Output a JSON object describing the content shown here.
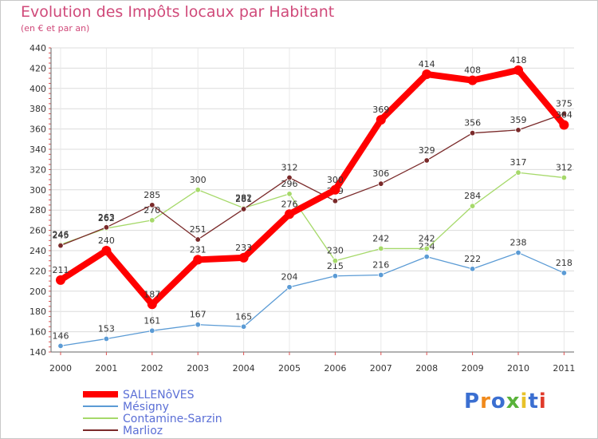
{
  "title": "Evolution des Impôts locaux par Habitant",
  "subtitle": "(en € et par an)",
  "logo": {
    "text": "Proxiti",
    "colors": [
      "#3b6fd1",
      "#f08a1c",
      "#3b6fd1",
      "#59b33a",
      "#e8c22a",
      "#3b6fd1",
      "#e03a2a"
    ]
  },
  "chart_data": {
    "type": "line",
    "x": [
      "2000",
      "2001",
      "2002",
      "2003",
      "2004",
      "2005",
      "2006",
      "2007",
      "2008",
      "2009",
      "2010",
      "2011"
    ],
    "ylim": [
      140,
      440
    ],
    "yticks": [
      140,
      160,
      180,
      200,
      220,
      240,
      260,
      280,
      300,
      320,
      340,
      360,
      380,
      400,
      420,
      440
    ],
    "grid": true,
    "legend_position": "bottom-left",
    "series": [
      {
        "name": "SALLENôVES",
        "color": "#ff0000",
        "values": [
          211,
          240,
          187,
          231,
          233,
          276,
          300,
          369,
          414,
          408,
          418,
          364
        ]
      },
      {
        "name": "Mésigny",
        "color": "#5b9bd5",
        "values": [
          146,
          153,
          161,
          167,
          165,
          204,
          215,
          216,
          234,
          222,
          238,
          218
        ]
      },
      {
        "name": "Contamine-Sarzin",
        "color": "#a6d96a",
        "values": [
          246,
          262,
          270,
          300,
          282,
          296,
          230,
          242,
          242,
          284,
          317,
          312
        ]
      },
      {
        "name": "Marlioz",
        "color": "#7a2a2a",
        "values": [
          245,
          263,
          285,
          251,
          281,
          312,
          289,
          306,
          329,
          356,
          359,
          375
        ]
      }
    ]
  }
}
